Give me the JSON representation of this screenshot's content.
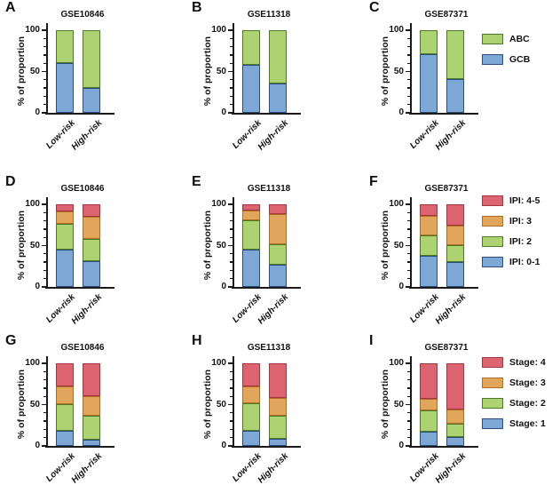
{
  "figure": {
    "ylabel": "% of proportion",
    "categories": [
      "Low-risk",
      "High-risk"
    ],
    "yticks": [
      {
        "value": 0,
        "label": "0"
      },
      {
        "value": 50,
        "label": "50"
      },
      {
        "value": 100,
        "label": "100"
      }
    ],
    "ylim": [
      0,
      100
    ],
    "grid": false
  },
  "colors": {
    "blue": {
      "fill": "#7DA7D5",
      "border": "#2B4E7E"
    },
    "green": {
      "fill": "#ACD271",
      "border": "#4E7A28"
    },
    "orange": {
      "fill": "#E2A55C",
      "border": "#B06E25"
    },
    "red": {
      "fill": "#DB6470",
      "border": "#A63440"
    }
  },
  "legends": [
    {
      "name": "subtype",
      "items": [
        {
          "label": "ABC",
          "color": "green"
        },
        {
          "label": "GCB",
          "color": "blue"
        }
      ]
    },
    {
      "name": "ipi",
      "items": [
        {
          "label": "IPI: 4-5",
          "color": "red"
        },
        {
          "label": "IPI: 3",
          "color": "orange"
        },
        {
          "label": "IPI: 2",
          "color": "green"
        },
        {
          "label": "IPI: 0-1",
          "color": "blue"
        }
      ]
    },
    {
      "name": "stage",
      "items": [
        {
          "label": "Stage: 4",
          "color": "red"
        },
        {
          "label": "Stage: 3",
          "color": "orange"
        },
        {
          "label": "Stage: 2",
          "color": "green"
        },
        {
          "label": "Stage: 1",
          "color": "blue"
        }
      ]
    }
  ],
  "chart_data": [
    {
      "panel": "A",
      "type": "bar",
      "stacked": true,
      "title": "GSE10846",
      "categories": [
        "Low-risk",
        "High-risk"
      ],
      "ylabel": "% of proportion",
      "ylim": [
        0,
        100
      ],
      "series": [
        {
          "name": "GCB",
          "color": "blue",
          "values": [
            60,
            30
          ]
        },
        {
          "name": "ABC",
          "color": "green",
          "values": [
            40,
            70
          ]
        }
      ]
    },
    {
      "panel": "B",
      "type": "bar",
      "stacked": true,
      "title": "GSE11318",
      "categories": [
        "Low-risk",
        "High-risk"
      ],
      "ylabel": "% of proportion",
      "ylim": [
        0,
        100
      ],
      "series": [
        {
          "name": "GCB",
          "color": "blue",
          "values": [
            58,
            35
          ]
        },
        {
          "name": "ABC",
          "color": "green",
          "values": [
            42,
            65
          ]
        }
      ]
    },
    {
      "panel": "C",
      "type": "bar",
      "stacked": true,
      "title": "GSE87371",
      "categories": [
        "Low-risk",
        "High-risk"
      ],
      "ylabel": "% of proportion",
      "ylim": [
        0,
        100
      ],
      "series": [
        {
          "name": "GCB",
          "color": "blue",
          "values": [
            71,
            41
          ]
        },
        {
          "name": "ABC",
          "color": "green",
          "values": [
            29,
            59
          ]
        }
      ]
    },
    {
      "panel": "D",
      "type": "bar",
      "stacked": true,
      "title": "GSE10846",
      "categories": [
        "Low-risk",
        "High-risk"
      ],
      "ylabel": "% of proportion",
      "ylim": [
        0,
        100
      ],
      "series": [
        {
          "name": "IPI: 0-1",
          "color": "blue",
          "values": [
            45,
            31
          ]
        },
        {
          "name": "IPI: 2",
          "color": "green",
          "values": [
            31,
            27
          ]
        },
        {
          "name": "IPI: 3",
          "color": "orange",
          "values": [
            15,
            27
          ]
        },
        {
          "name": "IPI: 4-5",
          "color": "red",
          "values": [
            9,
            15
          ]
        }
      ]
    },
    {
      "panel": "E",
      "type": "bar",
      "stacked": true,
      "title": "GSE11318",
      "categories": [
        "Low-risk",
        "High-risk"
      ],
      "ylabel": "% of proportion",
      "ylim": [
        0,
        100
      ],
      "series": [
        {
          "name": "IPI: 0-1",
          "color": "blue",
          "values": [
            45,
            27
          ]
        },
        {
          "name": "IPI: 2",
          "color": "green",
          "values": [
            36,
            25
          ]
        },
        {
          "name": "IPI: 3",
          "color": "orange",
          "values": [
            12,
            36
          ]
        },
        {
          "name": "IPI: 4-5",
          "color": "red",
          "values": [
            7,
            12
          ]
        }
      ]
    },
    {
      "panel": "F",
      "type": "bar",
      "stacked": true,
      "title": "GSE87371",
      "categories": [
        "Low-risk",
        "High-risk"
      ],
      "ylabel": "% of proportion",
      "ylim": [
        0,
        100
      ],
      "series": [
        {
          "name": "IPI: 0-1",
          "color": "blue",
          "values": [
            38,
            30
          ]
        },
        {
          "name": "IPI: 2",
          "color": "green",
          "values": [
            24,
            20
          ]
        },
        {
          "name": "IPI: 3",
          "color": "orange",
          "values": [
            24,
            24
          ]
        },
        {
          "name": "IPI: 4-5",
          "color": "red",
          "values": [
            14,
            26
          ]
        }
      ]
    },
    {
      "panel": "G",
      "type": "bar",
      "stacked": true,
      "title": "GSE10846",
      "categories": [
        "Low-risk",
        "High-risk"
      ],
      "ylabel": "% of proportion",
      "ylim": [
        0,
        100
      ],
      "series": [
        {
          "name": "Stage: 1",
          "color": "blue",
          "values": [
            18,
            7
          ]
        },
        {
          "name": "Stage: 2",
          "color": "green",
          "values": [
            32,
            30
          ]
        },
        {
          "name": "Stage: 3",
          "color": "orange",
          "values": [
            22,
            23
          ]
        },
        {
          "name": "Stage: 4",
          "color": "red",
          "values": [
            28,
            40
          ]
        }
      ]
    },
    {
      "panel": "H",
      "type": "bar",
      "stacked": true,
      "title": "GSE11318",
      "categories": [
        "Low-risk",
        "High-risk"
      ],
      "ylabel": "% of proportion",
      "ylim": [
        0,
        100
      ],
      "series": [
        {
          "name": "Stage: 1",
          "color": "blue",
          "values": [
            18,
            9
          ]
        },
        {
          "name": "Stage: 2",
          "color": "green",
          "values": [
            34,
            28
          ]
        },
        {
          "name": "Stage: 3",
          "color": "orange",
          "values": [
            20,
            21
          ]
        },
        {
          "name": "Stage: 4",
          "color": "red",
          "values": [
            28,
            42
          ]
        }
      ]
    },
    {
      "panel": "I",
      "type": "bar",
      "stacked": true,
      "title": "GSE87371",
      "categories": [
        "Low-risk",
        "High-risk"
      ],
      "ylabel": "% of proportion",
      "ylim": [
        0,
        100
      ],
      "series": [
        {
          "name": "Stage: 1",
          "color": "blue",
          "values": [
            17,
            11
          ]
        },
        {
          "name": "Stage: 2",
          "color": "green",
          "values": [
            26,
            16
          ]
        },
        {
          "name": "Stage: 3",
          "color": "orange",
          "values": [
            14,
            17
          ]
        },
        {
          "name": "Stage: 4",
          "color": "red",
          "values": [
            43,
            56
          ]
        }
      ]
    }
  ]
}
